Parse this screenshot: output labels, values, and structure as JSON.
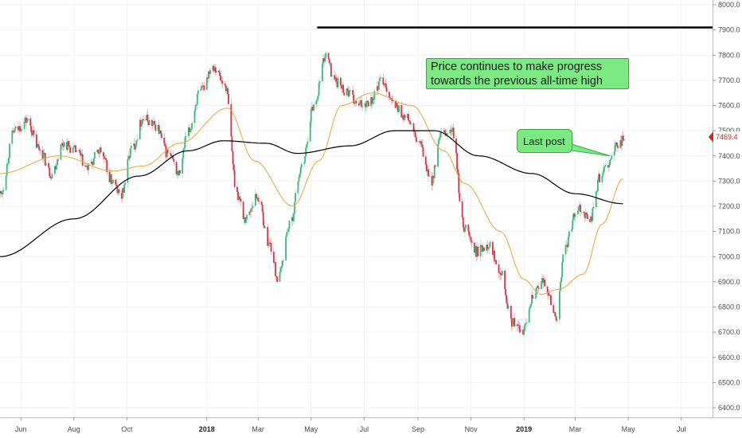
{
  "chart_data": {
    "type": "candlestick",
    "title": "",
    "xlabel": "",
    "ylabel": "",
    "ylim": [
      6360,
      8020
    ],
    "y_ticks": [
      8000,
      7900,
      7800,
      7700,
      7600,
      7500,
      7400,
      7300,
      7200,
      7100,
      7000,
      6900,
      6800,
      6700,
      6600,
      6500,
      6400
    ],
    "x_ticks": [
      "Jun",
      "Aug",
      "Oct",
      "2018",
      "Mar",
      "May",
      "Jul",
      "Sep",
      "Nov",
      "2019",
      "Mar",
      "May",
      "Jul"
    ],
    "x_ticks_bold": [
      "2018",
      "2019"
    ],
    "x_range": [
      "2017-05-08",
      "2019-08-06"
    ],
    "x_tick_dates": [
      "2017-06-01",
      "2017-08-01",
      "2017-10-01",
      "2018-01-01",
      "2018-03-01",
      "2018-05-01",
      "2018-07-01",
      "2018-09-01",
      "2018-11-01",
      "2019-01-01",
      "2019-03-01",
      "2019-05-01",
      "2019-07-01"
    ],
    "last_price": "7469.4",
    "grid": true,
    "colors": {
      "up": "#3cb87a",
      "down": "#d9344a",
      "ma_fast": "#f3a33a",
      "ma_slow": "#000000",
      "resistance": "#000000",
      "price_tag": "#e02020"
    },
    "close_path": [
      [
        "2017-05-08",
        7250
      ],
      [
        "2017-05-25",
        7500
      ],
      [
        "2017-06-08",
        7540
      ],
      [
        "2017-06-22",
        7430
      ],
      [
        "2017-07-06",
        7330
      ],
      [
        "2017-07-20",
        7450
      ],
      [
        "2017-08-03",
        7420
      ],
      [
        "2017-08-17",
        7350
      ],
      [
        "2017-08-31",
        7420
      ],
      [
        "2017-09-14",
        7300
      ],
      [
        "2017-09-24",
        7240
      ],
      [
        "2017-10-07",
        7430
      ],
      [
        "2017-10-20",
        7550
      ],
      [
        "2017-11-03",
        7520
      ],
      [
        "2017-11-17",
        7410
      ],
      [
        "2017-11-30",
        7330
      ],
      [
        "2017-12-10",
        7490
      ],
      [
        "2017-12-24",
        7650
      ],
      [
        "2018-01-08",
        7760
      ],
      [
        "2018-01-22",
        7680
      ],
      [
        "2018-02-05",
        7250
      ],
      [
        "2018-02-14",
        7150
      ],
      [
        "2018-02-28",
        7240
      ],
      [
        "2018-03-14",
        7050
      ],
      [
        "2018-03-24",
        6910
      ],
      [
        "2018-04-06",
        7120
      ],
      [
        "2018-04-20",
        7350
      ],
      [
        "2018-05-04",
        7600
      ],
      [
        "2018-05-18",
        7800
      ],
      [
        "2018-05-28",
        7700
      ],
      [
        "2018-06-10",
        7660
      ],
      [
        "2018-06-24",
        7600
      ],
      [
        "2018-07-08",
        7620
      ],
      [
        "2018-07-22",
        7700
      ],
      [
        "2018-08-05",
        7600
      ],
      [
        "2018-08-19",
        7550
      ],
      [
        "2018-09-02",
        7450
      ],
      [
        "2018-09-16",
        7300
      ],
      [
        "2018-09-28",
        7480
      ],
      [
        "2018-10-10",
        7500
      ],
      [
        "2018-10-24",
        7120
      ],
      [
        "2018-11-07",
        7020
      ],
      [
        "2018-11-21",
        7050
      ],
      [
        "2018-12-05",
        6950
      ],
      [
        "2018-12-18",
        6740
      ],
      [
        "2018-12-30",
        6700
      ],
      [
        "2019-01-12",
        6850
      ],
      [
        "2019-01-24",
        6900
      ],
      [
        "2019-02-07",
        6760
      ],
      [
        "2019-02-18",
        7050
      ],
      [
        "2019-03-04",
        7200
      ],
      [
        "2019-03-18",
        7150
      ],
      [
        "2019-03-30",
        7320
      ],
      [
        "2019-04-10",
        7380
      ],
      [
        "2019-04-18",
        7440
      ],
      [
        "2019-04-26",
        7470
      ]
    ],
    "ma_fast_points": [
      [
        "2017-05-08",
        7330
      ],
      [
        "2017-07-15",
        7400
      ],
      [
        "2017-09-15",
        7340
      ],
      [
        "2017-10-20",
        7360
      ],
      [
        "2017-12-01",
        7450
      ],
      [
        "2018-01-25",
        7590
      ],
      [
        "2018-02-25",
        7380
      ],
      [
        "2018-04-10",
        7200
      ],
      [
        "2018-05-10",
        7380
      ],
      [
        "2018-06-05",
        7600
      ],
      [
        "2018-07-10",
        7650
      ],
      [
        "2018-08-25",
        7600
      ],
      [
        "2018-10-01",
        7420
      ],
      [
        "2018-10-25",
        7290
      ],
      [
        "2018-12-05",
        7100
      ],
      [
        "2019-01-01",
        6910
      ],
      [
        "2019-01-20",
        6850
      ],
      [
        "2019-02-10",
        6870
      ],
      [
        "2019-03-10",
        6930
      ],
      [
        "2019-04-01",
        7130
      ],
      [
        "2019-04-25",
        7310
      ]
    ],
    "ma_slow_points": [
      [
        "2017-05-08",
        7000
      ],
      [
        "2017-08-01",
        7150
      ],
      [
        "2017-10-15",
        7320
      ],
      [
        "2017-12-10",
        7420
      ],
      [
        "2018-01-20",
        7460
      ],
      [
        "2018-03-10",
        7450
      ],
      [
        "2018-04-15",
        7410
      ],
      [
        "2018-06-15",
        7440
      ],
      [
        "2018-08-05",
        7500
      ],
      [
        "2018-09-20",
        7500
      ],
      [
        "2018-11-10",
        7400
      ],
      [
        "2019-01-10",
        7330
      ],
      [
        "2019-03-01",
        7250
      ],
      [
        "2019-04-25",
        7210
      ]
    ],
    "resistance_line": {
      "y": 7910,
      "x_start": "2018-05-08",
      "x_end": "2019-08-06"
    },
    "annotations": [
      {
        "text_lines": [
          "Price continues to make progress",
          "towards the previous all-time high"
        ]
      },
      {
        "text": "Last post",
        "points_to": {
          "x": "2019-04-10",
          "y": 7400
        }
      }
    ]
  }
}
